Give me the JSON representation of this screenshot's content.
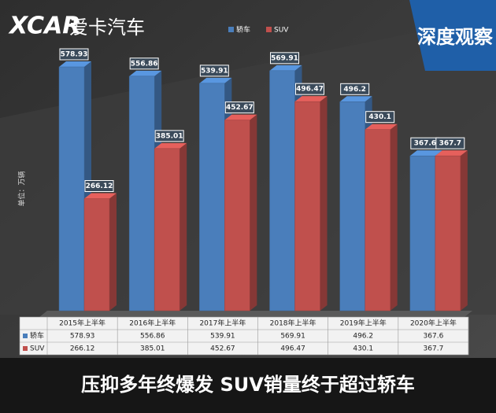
{
  "header": {
    "logo_mark": "XCAR",
    "logo_text": "爱卡汽车",
    "badge": "深度观察"
  },
  "caption": "压抑多年终爆发 SUV销量终于超过轿车",
  "chart_data": {
    "type": "bar",
    "y_label": "单位：万辆",
    "categories": [
      "2015年上半年",
      "2016年上半年",
      "2017年上半年",
      "2018年上半年",
      "2019年上半年",
      "2020年上半年"
    ],
    "series": [
      {
        "name": "轿车",
        "color": "#4a7ebb",
        "values": [
          578.93,
          556.86,
          539.91,
          569.91,
          496.2,
          367.6
        ]
      },
      {
        "name": "SUV",
        "color": "#c0504d",
        "values": [
          266.12,
          385.01,
          452.67,
          496.47,
          430.1,
          367.7
        ]
      }
    ],
    "data_table": true
  }
}
